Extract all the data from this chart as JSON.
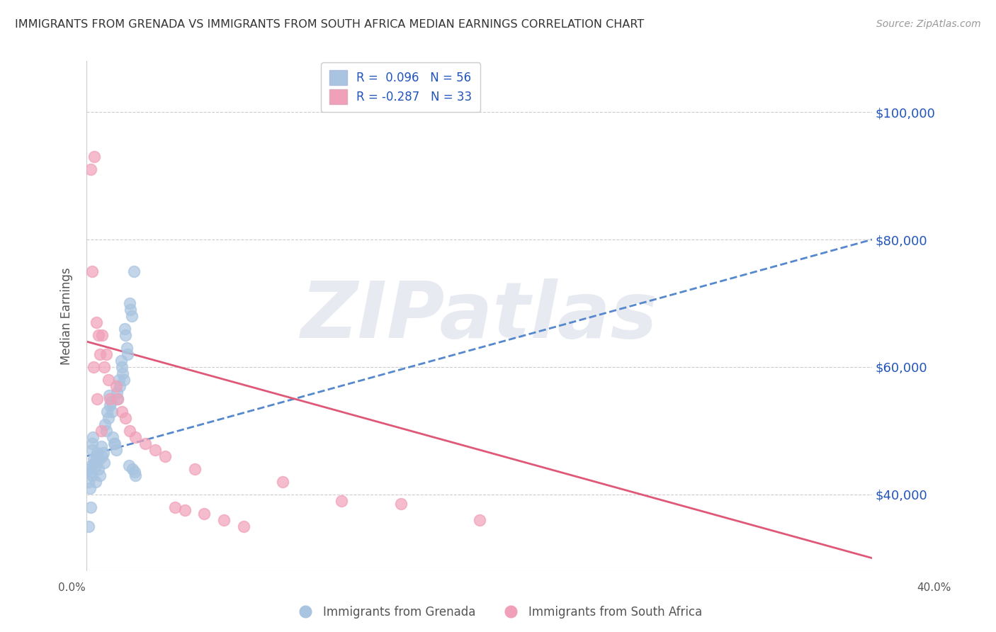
{
  "title": "IMMIGRANTS FROM GRENADA VS IMMIGRANTS FROM SOUTH AFRICA MEDIAN EARNINGS CORRELATION CHART",
  "source": "Source: ZipAtlas.com",
  "ylabel": "Median Earnings",
  "y_tick_labels": [
    "$40,000",
    "$60,000",
    "$80,000",
    "$100,000"
  ],
  "y_tick_values": [
    40000,
    60000,
    80000,
    100000
  ],
  "xlim": [
    0.0,
    40.0
  ],
  "ylim": [
    28000,
    108000
  ],
  "color_grenada": "#a8c4e0",
  "color_sa": "#f0a0b8",
  "trendline_grenada": "#5588cc",
  "trendline_sa": "#e05878",
  "background_color": "#ffffff",
  "watermark": "ZIPatlas",
  "watermark_color": "#d8dde8",
  "grenada_x": [
    0.1,
    0.15,
    0.2,
    0.25,
    0.3,
    0.3,
    0.35,
    0.4,
    0.45,
    0.5,
    0.55,
    0.6,
    0.65,
    0.7,
    0.75,
    0.8,
    0.85,
    0.9,
    0.95,
    1.0,
    1.05,
    1.1,
    1.15,
    1.2,
    1.25,
    1.3,
    1.35,
    1.4,
    1.45,
    1.5,
    1.55,
    1.6,
    1.65,
    1.7,
    1.75,
    1.8,
    1.85,
    1.9,
    1.95,
    2.0,
    2.05,
    2.1,
    2.15,
    2.2,
    2.25,
    2.3,
    2.35,
    2.4,
    2.45,
    2.5,
    0.12,
    0.18,
    0.22,
    0.28,
    0.32,
    0.48
  ],
  "grenada_y": [
    35000,
    44000,
    43500,
    44500,
    43000,
    47000,
    45500,
    45000,
    44500,
    46000,
    46500,
    44000,
    45500,
    43000,
    47500,
    46000,
    46500,
    45000,
    51000,
    50000,
    53000,
    52000,
    55500,
    54000,
    54500,
    53000,
    49000,
    48000,
    48000,
    47000,
    56000,
    55000,
    58000,
    57000,
    61000,
    60000,
    59000,
    58000,
    66000,
    65000,
    63000,
    62000,
    44500,
    70000,
    69000,
    68000,
    44000,
    75000,
    43500,
    43000,
    42000,
    41000,
    38000,
    48000,
    49000,
    42000
  ],
  "sa_x": [
    0.2,
    0.3,
    0.4,
    0.5,
    0.6,
    0.7,
    0.8,
    0.9,
    1.0,
    1.1,
    1.2,
    1.5,
    1.6,
    1.8,
    2.0,
    2.2,
    2.5,
    3.0,
    3.5,
    4.0,
    4.5,
    5.0,
    5.5,
    6.0,
    7.0,
    8.0,
    10.0,
    13.0,
    16.0,
    20.0,
    0.35,
    0.55,
    0.75
  ],
  "sa_y": [
    91000,
    75000,
    93000,
    67000,
    65000,
    62000,
    65000,
    60000,
    62000,
    58000,
    55000,
    57000,
    55000,
    53000,
    52000,
    50000,
    49000,
    48000,
    47000,
    46000,
    38000,
    37500,
    44000,
    37000,
    36000,
    35000,
    42000,
    39000,
    38500,
    36000,
    60000,
    55000,
    50000
  ],
  "grenada_trend_x": [
    0.0,
    40.0
  ],
  "grenada_trend_y": [
    46000,
    80000
  ],
  "sa_trend_x": [
    0.0,
    40.0
  ],
  "sa_trend_y": [
    64000,
    30000
  ]
}
